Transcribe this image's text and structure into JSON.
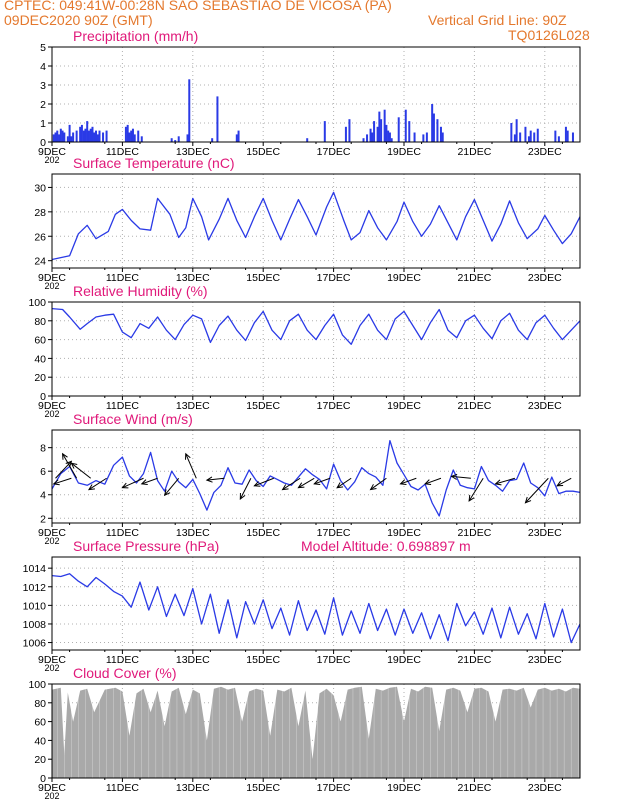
{
  "header": {
    "line1_left": "CPTEC:    049:41W-00:28N  SAO SEBASTIAO DE VICOSA (PA)",
    "line2_left": "09DEC2020 90Z (GMT)",
    "line2_right": "Vertical Grid Line: 90Z",
    "line3_right": "TQ0126L028"
  },
  "colors": {
    "header": "#e4782d",
    "title": "#e0197a",
    "series": "#2a3ae6",
    "cloud": "#a9a9a9",
    "axis": "#000000",
    "grid": "#b0b0b0"
  },
  "year_fragment": "202",
  "chart_data": [
    {
      "id": "precipitation",
      "type": "bar",
      "title": "Precipitation (mm/h)",
      "xlim": [
        0,
        15
      ],
      "ylim": [
        0,
        5
      ],
      "yticks": [
        0,
        1,
        2,
        3,
        4,
        5
      ],
      "xticks": [
        0,
        2,
        4,
        6,
        8,
        10,
        12,
        14
      ],
      "xtick_labels": [
        "9DEC",
        "11DEC",
        "13DEC",
        "15DEC",
        "17DEC",
        "19DEC",
        "21DEC",
        "23DEC"
      ],
      "x": [
        0.05,
        0.1,
        0.15,
        0.2,
        0.25,
        0.3,
        0.35,
        0.45,
        0.5,
        0.55,
        0.6,
        0.7,
        0.8,
        0.85,
        0.9,
        0.95,
        1.0,
        1.05,
        1.1,
        1.15,
        1.2,
        1.25,
        1.3,
        1.35,
        1.45,
        1.55,
        2.1,
        2.15,
        2.2,
        2.25,
        2.3,
        2.35,
        2.45,
        2.55,
        3.4,
        3.5,
        3.6,
        3.85,
        3.9,
        4.55,
        4.7,
        5.25,
        5.3,
        7.25,
        7.75,
        8.35,
        8.45,
        8.85,
        8.95,
        9.05,
        9.1,
        9.15,
        9.25,
        9.3,
        9.35,
        9.45,
        9.5,
        9.55,
        9.6,
        9.65,
        9.85,
        10.05,
        10.15,
        10.3,
        10.55,
        10.65,
        10.8,
        10.85,
        10.95,
        11.05,
        11.1,
        13.05,
        13.15,
        13.2,
        13.3,
        13.45,
        13.55,
        13.6,
        13.7,
        13.8,
        14.3,
        14.4,
        14.6,
        14.65,
        14.8
      ],
      "values": [
        0.4,
        0.5,
        0.6,
        0.4,
        0.7,
        0.6,
        0.5,
        0.3,
        0.9,
        0.3,
        0.5,
        0.6,
        0.8,
        0.9,
        0.6,
        0.7,
        1.1,
        0.6,
        0.7,
        0.8,
        0.5,
        0.6,
        0.4,
        0.6,
        0.5,
        0.6,
        0.8,
        0.9,
        0.5,
        0.6,
        0.7,
        0.4,
        0.6,
        0.3,
        0.2,
        0.1,
        0.3,
        0.4,
        3.3,
        0.2,
        2.4,
        0.4,
        0.6,
        0.2,
        1.1,
        0.8,
        1.2,
        0.2,
        0.4,
        0.7,
        0.5,
        1.1,
        0.8,
        1.6,
        1.2,
        1.7,
        0.9,
        0.6,
        0.5,
        0.2,
        1.3,
        1.7,
        1.1,
        0.5,
        0.4,
        0.5,
        2.0,
        1.5,
        1.2,
        0.8,
        0.5,
        1.0,
        0.4,
        1.2,
        0.5,
        0.8,
        0.3,
        0.6,
        0.5,
        0.7,
        0.6,
        0.3,
        0.8,
        0.6,
        0.5
      ]
    },
    {
      "id": "temperature",
      "type": "line",
      "title": "Surface Temperature (nC)",
      "xlim": [
        0,
        15
      ],
      "ylim": [
        23.4,
        31.1
      ],
      "yticks": [
        24,
        26,
        28,
        30
      ],
      "xticks": [
        0,
        2,
        4,
        6,
        8,
        10,
        12,
        14
      ],
      "xtick_labels": [
        "9DEC",
        "11DEC",
        "13DEC",
        "15DEC",
        "17DEC",
        "19DEC",
        "21DEC",
        "23DEC"
      ],
      "x": [
        0,
        0.5,
        0.75,
        1.0,
        1.25,
        1.6,
        1.8,
        2.0,
        2.25,
        2.5,
        2.8,
        3.0,
        3.35,
        3.6,
        3.8,
        4.0,
        4.25,
        4.45,
        4.75,
        5.0,
        5.25,
        5.5,
        5.75,
        6.0,
        6.25,
        6.5,
        6.75,
        7.0,
        7.25,
        7.5,
        7.8,
        8.0,
        8.3,
        8.5,
        8.75,
        9.0,
        9.25,
        9.5,
        9.8,
        10.0,
        10.25,
        10.5,
        10.75,
        11.0,
        11.25,
        11.5,
        11.75,
        12.0,
        12.25,
        12.5,
        12.75,
        13.0,
        13.25,
        13.5,
        13.8,
        14.0,
        14.25,
        14.5,
        14.75,
        15.0
      ],
      "values": [
        24.1,
        24.4,
        26.2,
        26.9,
        25.8,
        26.4,
        27.8,
        28.2,
        27.3,
        26.6,
        26.5,
        29.1,
        27.8,
        25.9,
        26.7,
        29.1,
        27.6,
        25.7,
        27.4,
        29.1,
        27.3,
        25.9,
        27.6,
        29.1,
        27.3,
        25.7,
        27.4,
        29.0,
        27.6,
        26.1,
        28.4,
        29.6,
        27.2,
        25.7,
        26.3,
        28.1,
        26.7,
        25.7,
        27.2,
        28.8,
        27.2,
        26.0,
        27.0,
        28.5,
        27.1,
        25.7,
        27.6,
        29.0,
        27.3,
        25.6,
        27.0,
        28.9,
        27.1,
        25.8,
        26.6,
        27.7,
        26.5,
        25.4,
        26.2,
        27.6
      ]
    },
    {
      "id": "humidity",
      "type": "line",
      "title": "Relative Humidity (%)",
      "xlim": [
        0,
        15
      ],
      "ylim": [
        0,
        100
      ],
      "yticks": [
        0,
        20,
        40,
        60,
        80,
        100
      ],
      "xticks": [
        0,
        2,
        4,
        6,
        8,
        10,
        12,
        14
      ],
      "xtick_labels": [
        "9DEC",
        "11DEC",
        "13DEC",
        "15DEC",
        "17DEC",
        "19DEC",
        "21DEC",
        "23DEC"
      ],
      "x": [
        0,
        0.3,
        0.5,
        0.8,
        1.0,
        1.25,
        1.5,
        1.75,
        2.0,
        2.25,
        2.5,
        2.75,
        3.0,
        3.25,
        3.5,
        3.75,
        4.0,
        4.25,
        4.5,
        4.75,
        5.0,
        5.25,
        5.5,
        5.75,
        6.0,
        6.25,
        6.5,
        6.75,
        7.0,
        7.25,
        7.5,
        7.75,
        8.0,
        8.25,
        8.5,
        8.75,
        9.0,
        9.25,
        9.5,
        9.75,
        10.0,
        10.25,
        10.5,
        10.75,
        11.0,
        11.25,
        11.5,
        11.75,
        12.0,
        12.25,
        12.5,
        12.75,
        13.0,
        13.25,
        13.5,
        13.75,
        14.0,
        14.25,
        14.5,
        14.75,
        15.0
      ],
      "values": [
        93,
        92,
        84,
        71,
        77,
        84,
        86,
        87,
        68,
        62,
        77,
        72,
        84,
        70,
        60,
        76,
        86,
        82,
        57,
        75,
        85,
        70,
        59,
        78,
        90,
        70,
        60,
        80,
        87,
        70,
        60,
        75,
        87,
        65,
        55,
        75,
        87,
        70,
        60,
        82,
        90,
        75,
        60,
        78,
        92,
        70,
        62,
        80,
        86,
        72,
        61,
        80,
        88,
        70,
        60,
        78,
        86,
        72,
        60,
        70,
        80
      ]
    },
    {
      "id": "wind",
      "type": "line",
      "title": "Surface Wind (m/s)",
      "xlim": [
        0,
        15
      ],
      "ylim": [
        1.6,
        9.5
      ],
      "yticks": [
        2,
        4,
        6,
        8
      ],
      "xticks": [
        0,
        2,
        4,
        6,
        8,
        10,
        12,
        14
      ],
      "xtick_labels": [
        "9DEC",
        "11DEC",
        "13DEC",
        "15DEC",
        "17DEC",
        "19DEC",
        "21DEC",
        "23DEC"
      ],
      "x": [
        0,
        0.25,
        0.5,
        0.75,
        1.0,
        1.25,
        1.5,
        1.75,
        2.0,
        2.2,
        2.4,
        2.6,
        2.8,
        3.0,
        3.2,
        3.4,
        3.6,
        3.8,
        4.0,
        4.2,
        4.4,
        4.6,
        4.8,
        5.0,
        5.2,
        5.4,
        5.6,
        5.8,
        6.0,
        6.2,
        6.4,
        6.6,
        6.8,
        7.0,
        7.2,
        7.4,
        7.6,
        7.8,
        8.0,
        8.2,
        8.4,
        8.6,
        8.8,
        9.0,
        9.2,
        9.4,
        9.6,
        9.8,
        10.0,
        10.2,
        10.4,
        10.6,
        10.8,
        11.0,
        11.2,
        11.4,
        11.6,
        11.8,
        12.0,
        12.2,
        12.4,
        12.6,
        12.8,
        13.0,
        13.2,
        13.4,
        13.6,
        13.8,
        14.0,
        14.2,
        14.4,
        14.6,
        14.8,
        15.0
      ],
      "values": [
        4.5,
        5.8,
        6.4,
        5.0,
        4.8,
        5.2,
        4.9,
        6.5,
        7.2,
        5.6,
        5.0,
        5.8,
        7.6,
        5.2,
        4.3,
        6.0,
        5.1,
        4.6,
        5.3,
        4.1,
        2.7,
        4.2,
        4.8,
        6.3,
        5.0,
        4.9,
        6.1,
        5.2,
        4.7,
        5.6,
        5.3,
        5.0,
        4.8,
        5.5,
        6.2,
        5.7,
        5.3,
        4.5,
        6.6,
        5.2,
        4.4,
        5.1,
        6.3,
        5.8,
        5.5,
        4.8,
        8.6,
        6.7,
        5.7,
        4.7,
        4.4,
        4.9,
        3.3,
        2.2,
        4.4,
        6.1,
        4.8,
        4.6,
        4.5,
        6.4,
        5.2,
        4.8,
        4.3,
        5.2,
        5.3,
        6.7,
        5.0,
        4.6,
        3.9,
        5.5,
        4.1,
        4.3,
        4.3,
        4.2
      ],
      "arrows": [
        {
          "x": 0.1,
          "dx": 0.45,
          "dy": 0.9
        },
        {
          "x": 0.55,
          "dx": -0.5,
          "dy": -0.3
        },
        {
          "x": 0.7,
          "dx": -0.4,
          "dy": 1.3
        },
        {
          "x": 1.1,
          "dx": -0.55,
          "dy": 0.8
        },
        {
          "x": 1.55,
          "dx": -0.5,
          "dy": -0.6
        },
        {
          "x": 2.6,
          "dx": -0.6,
          "dy": -0.5
        },
        {
          "x": 3.0,
          "dx": -0.45,
          "dy": -0.3
        },
        {
          "x": 3.6,
          "dx": -0.4,
          "dy": -0.9
        },
        {
          "x": 4.1,
          "dx": -0.3,
          "dy": 1.3
        },
        {
          "x": 4.9,
          "dx": -0.5,
          "dy": -0.1
        },
        {
          "x": 5.65,
          "dx": -0.3,
          "dy": -1.1
        },
        {
          "x": 6.3,
          "dx": -0.55,
          "dy": -0.4
        },
        {
          "x": 7.05,
          "dx": -0.5,
          "dy": -0.6
        },
        {
          "x": 7.45,
          "dx": -0.45,
          "dy": -0.5
        },
        {
          "x": 7.9,
          "dx": -0.45,
          "dy": -0.3
        },
        {
          "x": 8.5,
          "dx": -0.4,
          "dy": -0.5
        },
        {
          "x": 9.5,
          "dx": -0.45,
          "dy": -0.6
        },
        {
          "x": 10.35,
          "dx": -0.45,
          "dy": -0.3
        },
        {
          "x": 11.05,
          "dx": -0.45,
          "dy": -0.3
        },
        {
          "x": 11.9,
          "dx": -0.55,
          "dy": 0.1
        },
        {
          "x": 12.25,
          "dx": -0.4,
          "dy": -1.2
        },
        {
          "x": 13.15,
          "dx": -0.55,
          "dy": -0.3
        },
        {
          "x": 14.1,
          "dx": -0.65,
          "dy": -1.3
        },
        {
          "x": 14.75,
          "dx": -0.4,
          "dy": -0.4
        }
      ]
    },
    {
      "id": "pressure",
      "type": "line",
      "title": "Surface Pressure (hPa)",
      "annotation": "Model Altitude: 0.698897 m",
      "xlim": [
        0,
        15
      ],
      "ylim": [
        1005.2,
        1015.2
      ],
      "yticks": [
        1006,
        1008,
        1010,
        1012,
        1014
      ],
      "xticks": [
        0,
        2,
        4,
        6,
        8,
        10,
        12,
        14
      ],
      "xtick_labels": [
        "9DEC",
        "11DEC",
        "13DEC",
        "15DEC",
        "17DEC",
        "19DEC",
        "21DEC",
        "23DEC"
      ],
      "x": [
        0,
        0.25,
        0.5,
        0.75,
        1.0,
        1.25,
        1.5,
        1.75,
        2.0,
        2.25,
        2.5,
        2.75,
        3.0,
        3.25,
        3.5,
        3.75,
        4.0,
        4.25,
        4.5,
        4.75,
        5.0,
        5.25,
        5.5,
        5.75,
        6.0,
        6.25,
        6.5,
        6.75,
        7.0,
        7.25,
        7.5,
        7.75,
        8.0,
        8.25,
        8.5,
        8.75,
        9.0,
        9.25,
        9.5,
        9.75,
        10.0,
        10.25,
        10.5,
        10.75,
        11.0,
        11.25,
        11.5,
        11.75,
        12.0,
        12.25,
        12.5,
        12.75,
        13.0,
        13.25,
        13.5,
        13.75,
        14.0,
        14.25,
        14.5,
        14.75,
        15.0
      ],
      "values": [
        1013.2,
        1013.1,
        1013.4,
        1012.6,
        1012.0,
        1013.0,
        1012.3,
        1011.5,
        1011.0,
        1009.8,
        1012.5,
        1009.5,
        1012.0,
        1008.8,
        1011.2,
        1008.9,
        1011.8,
        1008.0,
        1011.2,
        1007.0,
        1010.6,
        1006.5,
        1010.4,
        1008.0,
        1010.6,
        1007.5,
        1009.7,
        1006.8,
        1010.5,
        1007.3,
        1009.5,
        1006.9,
        1010.8,
        1006.8,
        1009.4,
        1007.0,
        1010.2,
        1007.3,
        1009.6,
        1006.8,
        1009.6,
        1007.0,
        1009.2,
        1006.4,
        1009.0,
        1006.2,
        1010.2,
        1007.8,
        1009.3,
        1006.9,
        1009.7,
        1006.5,
        1009.8,
        1006.9,
        1009.1,
        1006.4,
        1010.2,
        1006.6,
        1009.6,
        1006.0,
        1008.0
      ]
    },
    {
      "id": "cloud",
      "type": "area",
      "title": "Cloud Cover (%)",
      "xlim": [
        0,
        15
      ],
      "ylim": [
        0,
        100
      ],
      "yticks": [
        0,
        20,
        40,
        60,
        80,
        100
      ],
      "xticks": [
        0,
        2,
        4,
        6,
        8,
        10,
        12,
        14
      ],
      "xtick_labels": [
        "9DEC",
        "11DEC",
        "13DEC",
        "15DEC",
        "17DEC",
        "19DEC",
        "21DEC",
        "23DEC"
      ],
      "x": [
        0,
        0.25,
        0.35,
        0.45,
        0.6,
        0.8,
        1.0,
        1.2,
        1.5,
        1.8,
        2.0,
        2.2,
        2.4,
        2.6,
        2.8,
        3.0,
        3.2,
        3.4,
        3.6,
        3.8,
        4.0,
        4.2,
        4.4,
        4.6,
        4.8,
        5.0,
        5.2,
        5.4,
        5.6,
        5.8,
        6.0,
        6.2,
        6.4,
        6.6,
        6.8,
        7.0,
        7.2,
        7.4,
        7.6,
        7.8,
        8.0,
        8.2,
        8.4,
        8.6,
        8.8,
        9.0,
        9.2,
        9.4,
        9.6,
        9.8,
        10.0,
        10.2,
        10.4,
        10.6,
        10.8,
        11.0,
        11.2,
        11.4,
        11.6,
        11.8,
        12.0,
        12.2,
        12.4,
        12.6,
        12.8,
        13.0,
        13.2,
        13.4,
        13.6,
        13.8,
        14.0,
        14.2,
        14.4,
        14.6,
        14.8,
        15.0
      ],
      "values": [
        94,
        96,
        25,
        91,
        60,
        93,
        95,
        70,
        94,
        96,
        92,
        45,
        90,
        95,
        70,
        93,
        55,
        92,
        96,
        68,
        94,
        90,
        40,
        95,
        97,
        94,
        96,
        60,
        92,
        95,
        93,
        45,
        94,
        92,
        96,
        55,
        93,
        20,
        90,
        95,
        88,
        60,
        94,
        96,
        97,
        42,
        95,
        93,
        96,
        97,
        60,
        95,
        92,
        97,
        96,
        50,
        94,
        96,
        93,
        70,
        95,
        96,
        92,
        60,
        94,
        95,
        93,
        96,
        75,
        94,
        96,
        93,
        95,
        92,
        96,
        95
      ]
    }
  ]
}
